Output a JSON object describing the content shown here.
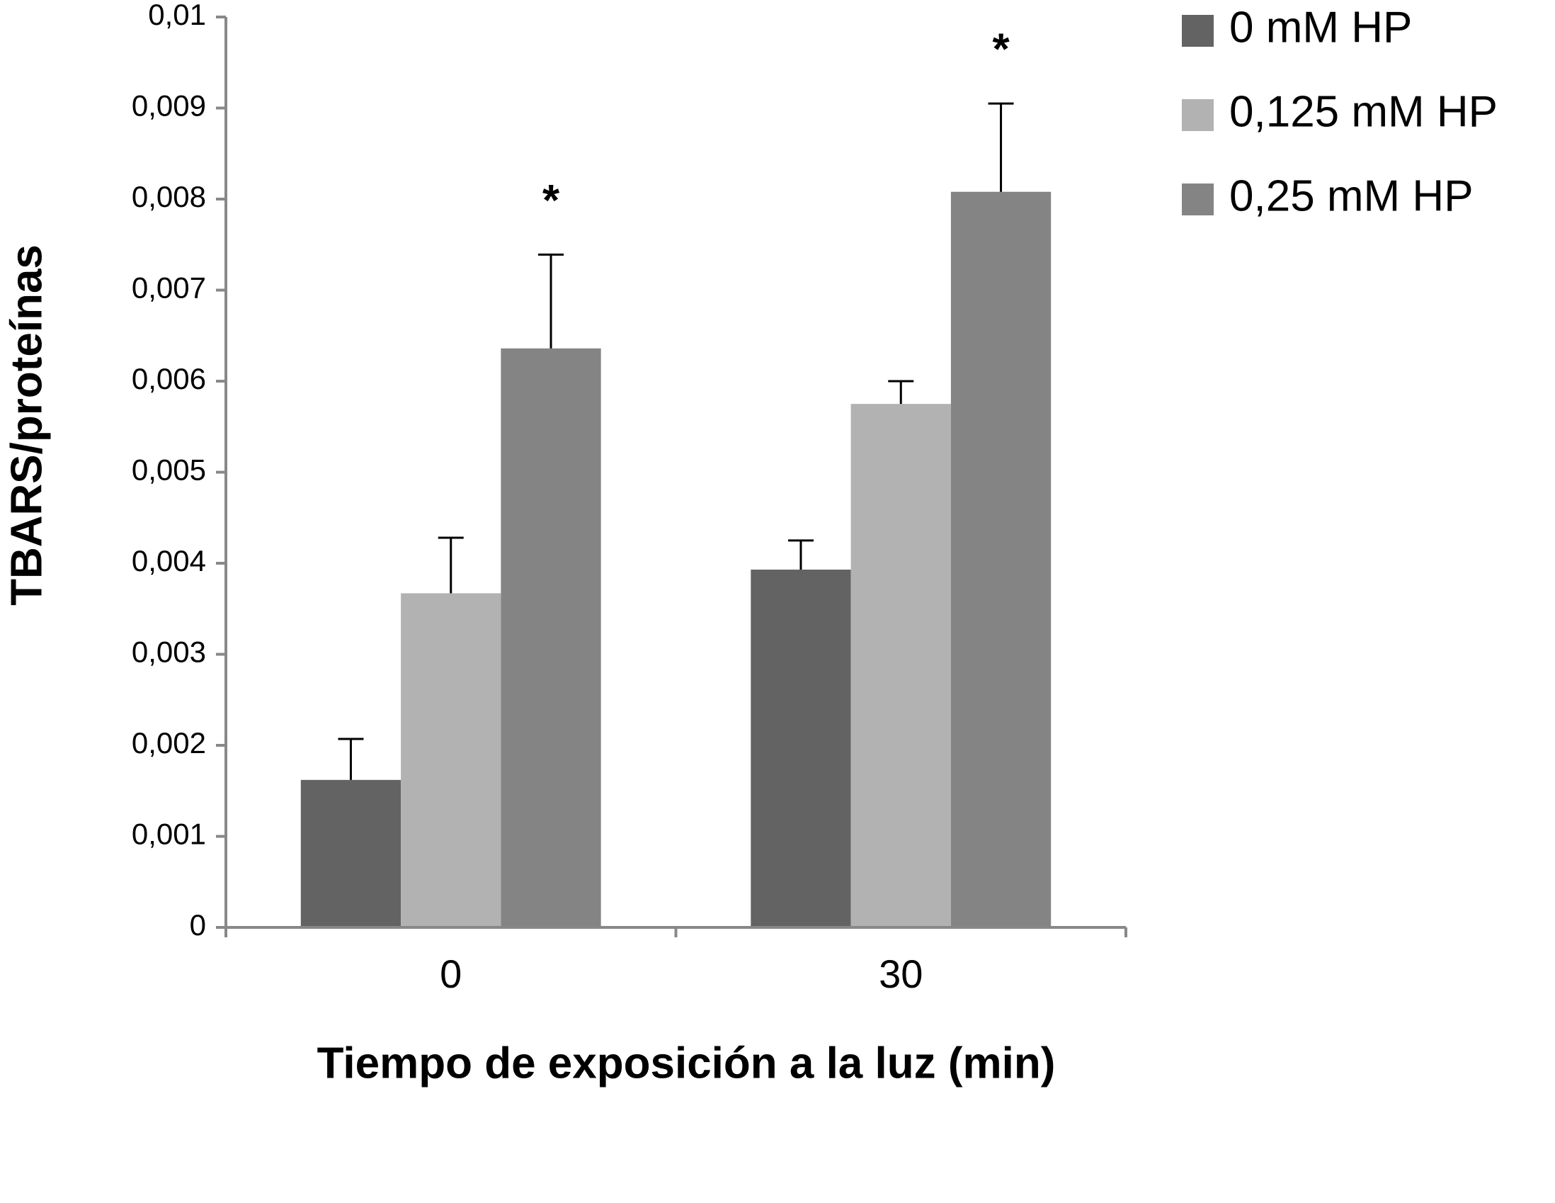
{
  "chart_data": {
    "type": "bar",
    "x_label": "Tiempo de exposición  a la luz (min)",
    "y_label": "TBARS/proteínas",
    "categories": [
      "0",
      "30"
    ],
    "series": [
      {
        "name": "0 mM HP",
        "color": "#636363",
        "values": [
          0.00162,
          0.00393
        ],
        "errors": [
          0.00045,
          0.00032
        ]
      },
      {
        "name": "0,125 mM HP",
        "color": "#b2b2b2",
        "values": [
          0.00367,
          0.00575
        ],
        "errors": [
          0.00061,
          0.00025
        ]
      },
      {
        "name": "0,25 mM HP",
        "color": "#848484",
        "values": [
          0.00636,
          0.00808
        ],
        "errors": [
          0.00103,
          0.00097
        ],
        "annotations": [
          "*",
          "*"
        ]
      }
    ],
    "ylim": [
      0,
      0.01
    ],
    "yticks": [
      0,
      {
        "value": 0.001,
        "label": "0,001"
      },
      {
        "value": 0.002,
        "label": "0,002"
      },
      {
        "value": 0.003,
        "label": "0,003"
      },
      {
        "value": 0.004,
        "label": "0,004"
      },
      {
        "value": 0.005,
        "label": "0,005"
      },
      {
        "value": 0.006,
        "label": "0,006"
      },
      {
        "value": 0.007,
        "label": "0,007"
      },
      {
        "value": 0.008,
        "label": "0,008"
      },
      {
        "value": 0.009,
        "label": "0,009"
      },
      {
        "value": 0.01,
        "label": "0,01"
      }
    ],
    "grid": false,
    "legend": "top-right"
  }
}
